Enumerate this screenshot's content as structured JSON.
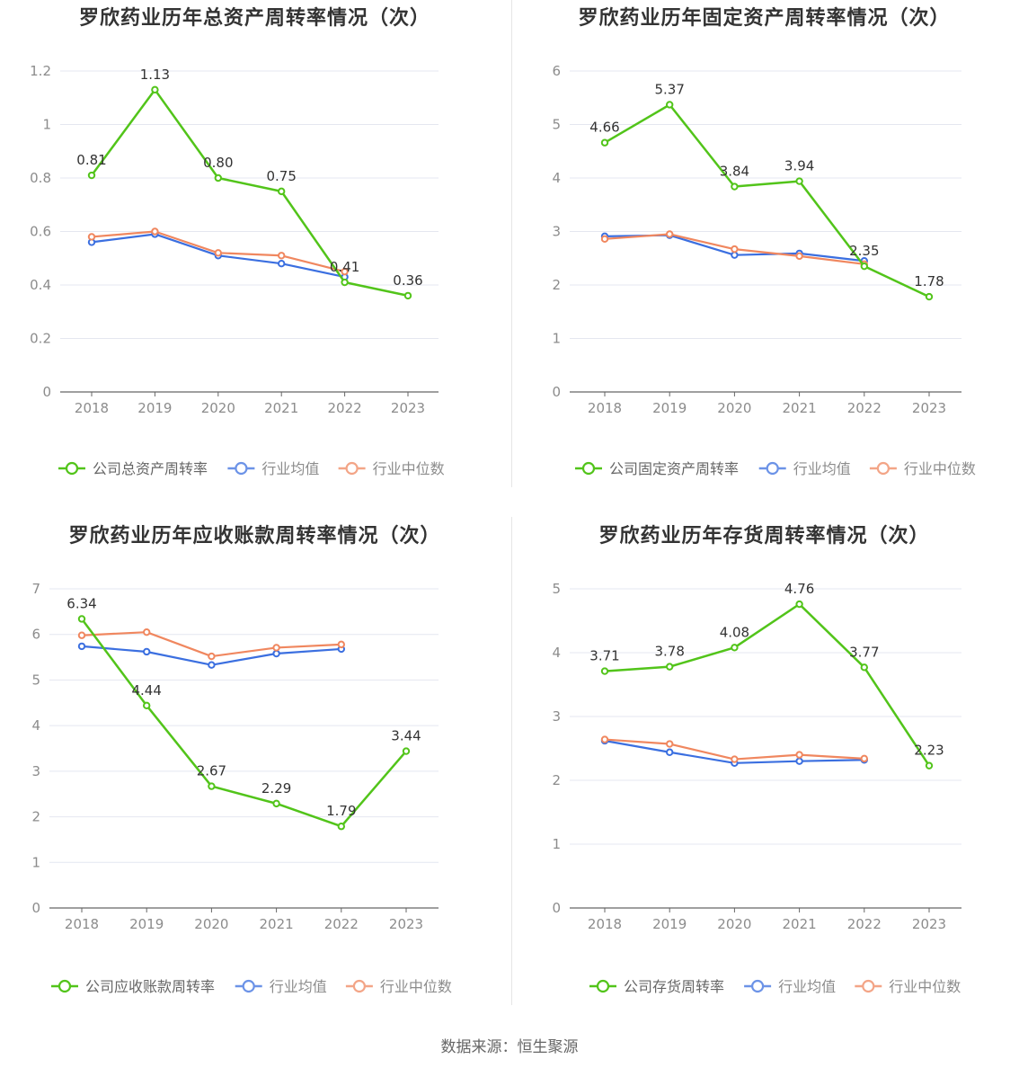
{
  "source_text": "数据来源：恒生聚源",
  "colors": {
    "company": "#52c41a",
    "avg": "#3b6fe0",
    "median": "#f0875f",
    "grid": "#e4e7f0",
    "axis": "#666666",
    "tick": "#8c8c8c"
  },
  "chart_data": [
    {
      "type": "line",
      "title": "罗欣药业历年总资产周转率情况（次）",
      "categories": [
        "2018",
        "2019",
        "2020",
        "2021",
        "2022",
        "2023"
      ],
      "ylim": [
        0,
        1.2
      ],
      "yticks": [
        "0",
        "0.2",
        "0.4",
        "0.6",
        "0.8",
        "1",
        "1.2"
      ],
      "series": [
        {
          "name": "公司总资产周转率",
          "key": "company",
          "values": [
            0.81,
            1.13,
            0.8,
            0.75,
            0.41,
            0.36
          ],
          "labels": [
            "0.81",
            "1.13",
            "0.80",
            "0.75",
            "0.41",
            "0.36"
          ]
        },
        {
          "name": "行业均值",
          "key": "avg",
          "values": [
            0.56,
            0.59,
            0.51,
            0.48,
            0.43,
            null
          ]
        },
        {
          "name": "行业中位数",
          "key": "median",
          "values": [
            0.58,
            0.6,
            0.52,
            0.51,
            0.45,
            null
          ]
        }
      ]
    },
    {
      "type": "line",
      "title": "罗欣药业历年固定资产周转率情况（次）",
      "categories": [
        "2018",
        "2019",
        "2020",
        "2021",
        "2022",
        "2023"
      ],
      "ylim": [
        0,
        6
      ],
      "yticks": [
        "0",
        "1",
        "2",
        "3",
        "4",
        "5",
        "6"
      ],
      "series": [
        {
          "name": "公司固定资产周转率",
          "key": "company",
          "values": [
            4.66,
            5.37,
            3.84,
            3.94,
            2.35,
            1.78
          ],
          "labels": [
            "4.66",
            "5.37",
            "3.84",
            "3.94",
            "2.35",
            "1.78"
          ]
        },
        {
          "name": "行业均值",
          "key": "avg",
          "values": [
            2.91,
            2.93,
            2.56,
            2.59,
            2.45,
            null
          ]
        },
        {
          "name": "行业中位数",
          "key": "median",
          "values": [
            2.86,
            2.95,
            2.67,
            2.54,
            2.39,
            null
          ]
        }
      ]
    },
    {
      "type": "line",
      "title": "罗欣药业历年应收账款周转率情况（次）",
      "categories": [
        "2018",
        "2019",
        "2020",
        "2021",
        "2022",
        "2023"
      ],
      "ylim": [
        0,
        7
      ],
      "yticks": [
        "0",
        "1",
        "2",
        "3",
        "4",
        "5",
        "6",
        "7"
      ],
      "series": [
        {
          "name": "公司应收账款周转率",
          "key": "company",
          "values": [
            6.34,
            4.44,
            2.67,
            2.29,
            1.79,
            3.44
          ],
          "labels": [
            "6.34",
            "4.44",
            "2.67",
            "2.29",
            "1.79",
            "3.44"
          ]
        },
        {
          "name": "行业均值",
          "key": "avg",
          "values": [
            5.74,
            5.62,
            5.33,
            5.58,
            5.68,
            null
          ]
        },
        {
          "name": "行业中位数",
          "key": "median",
          "values": [
            5.98,
            6.05,
            5.52,
            5.71,
            5.78,
            null
          ]
        }
      ]
    },
    {
      "type": "line",
      "title": "罗欣药业历年存货周转率情况（次）",
      "categories": [
        "2018",
        "2019",
        "2020",
        "2021",
        "2022",
        "2023"
      ],
      "ylim": [
        0,
        5
      ],
      "yticks": [
        "0",
        "1",
        "2",
        "3",
        "4",
        "5"
      ],
      "series": [
        {
          "name": "公司存货周转率",
          "key": "company",
          "values": [
            3.71,
            3.78,
            4.08,
            4.76,
            3.77,
            2.23
          ],
          "labels": [
            "3.71",
            "3.78",
            "4.08",
            "4.76",
            "3.77",
            "2.23"
          ]
        },
        {
          "name": "行业均值",
          "key": "avg",
          "values": [
            2.62,
            2.44,
            2.27,
            2.3,
            2.32,
            null
          ]
        },
        {
          "name": "行业中位数",
          "key": "median",
          "values": [
            2.64,
            2.57,
            2.33,
            2.4,
            2.34,
            null
          ]
        }
      ]
    }
  ]
}
